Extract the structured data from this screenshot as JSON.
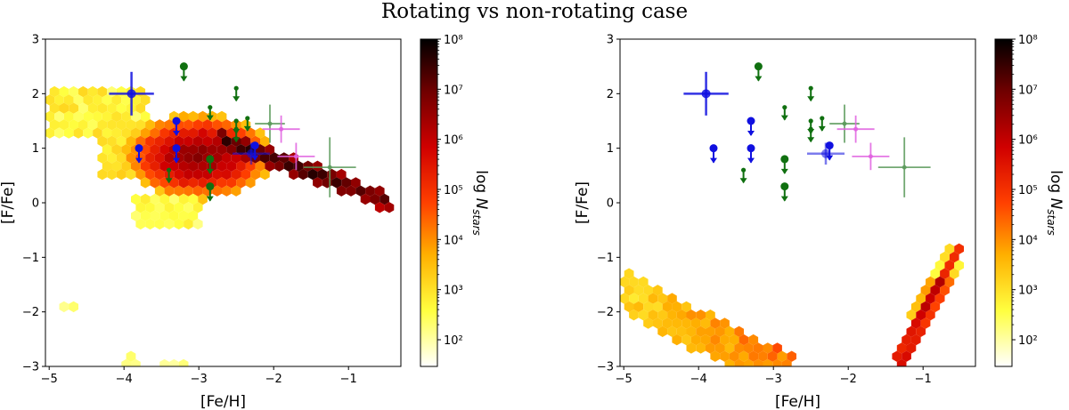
{
  "figure": {
    "title": "Rotating vs non-rotating case"
  },
  "chart_data": [
    {
      "type": "heatmap",
      "panel": "left",
      "xlabel": "[Fe/H]",
      "ylabel": "[F/Fe]",
      "colorbar_label": "log N_stars",
      "xlim": [
        -5.05,
        -0.3
      ],
      "ylim": [
        -3,
        3
      ],
      "xticks": [
        -5,
        -4,
        -3,
        -2,
        -1
      ],
      "yticks": [
        -3,
        -2,
        -1,
        0,
        1,
        2,
        3
      ],
      "colorbar_ticks": [
        "10²",
        "10³",
        "10⁴",
        "10⁵",
        "10⁶",
        "10⁷",
        "10⁸"
      ],
      "colorscale": [
        "#ffffff",
        "#ffff40",
        "#ffb000",
        "#ff4000",
        "#d00000",
        "#700000",
        "#000000"
      ],
      "density_regions": [
        {
          "name": "upper-left plateau",
          "x": [
            -5.0,
            -3.9
          ],
          "y": [
            1.4,
            2.0
          ],
          "level": 0.15
        },
        {
          "name": "main cloud",
          "x": [
            -4.0,
            -2.2
          ],
          "y": [
            0.0,
            1.6
          ],
          "level": 0.55
        },
        {
          "name": "dense core",
          "x": [
            -3.4,
            -2.6
          ],
          "y": [
            0.5,
            1.2
          ],
          "level": 0.75
        },
        {
          "name": "diagonal ridge",
          "x": [
            -2.6,
            -0.4
          ],
          "y_start": 1.1,
          "y_end": 0.0,
          "level": 0.9
        },
        {
          "name": "sparse tail",
          "x": [
            -4.9,
            -3.0
          ],
          "y": [
            -3.0,
            -1.9
          ],
          "level": 0.1
        }
      ],
      "points": [
        {
          "series": "blue",
          "x": -3.9,
          "y": 2.0,
          "xerr": 0.3,
          "yerr": 0.4,
          "kind": "detection"
        },
        {
          "series": "blue",
          "x": -3.8,
          "y": 1.0,
          "kind": "upper_limit"
        },
        {
          "series": "blue",
          "x": -3.3,
          "y": 1.5,
          "kind": "upper_limit"
        },
        {
          "series": "blue",
          "x": -3.3,
          "y": 1.0,
          "kind": "upper_limit"
        },
        {
          "series": "blue",
          "x": -2.25,
          "y": 1.05,
          "kind": "upper_limit"
        },
        {
          "series": "blue",
          "x": -2.3,
          "y": 0.9,
          "xerr": 0.25,
          "yerr": 0.2,
          "kind": "detection"
        },
        {
          "series": "green",
          "x": -3.2,
          "y": 2.5,
          "kind": "upper_limit"
        },
        {
          "series": "green",
          "x": -2.85,
          "y": 1.75,
          "kind": "upper_limit"
        },
        {
          "series": "green",
          "x": -2.5,
          "y": 2.1,
          "kind": "upper_limit"
        },
        {
          "series": "green",
          "x": -2.5,
          "y": 1.5,
          "kind": "upper_limit"
        },
        {
          "series": "green",
          "x": -2.5,
          "y": 1.35,
          "kind": "upper_limit"
        },
        {
          "series": "green",
          "x": -2.35,
          "y": 1.55,
          "kind": "upper_limit"
        },
        {
          "series": "green",
          "x": -3.4,
          "y": 0.6,
          "kind": "upper_limit"
        },
        {
          "series": "green",
          "x": -2.85,
          "y": 0.8,
          "kind": "upper_limit"
        },
        {
          "series": "green",
          "x": -2.85,
          "y": 0.3,
          "kind": "upper_limit"
        },
        {
          "series": "green_faint",
          "x": -2.05,
          "y": 1.45,
          "xerr": 0.2,
          "yerr": 0.35,
          "kind": "detection"
        },
        {
          "series": "green_faint",
          "x": -1.25,
          "y": 0.65,
          "xerr": 0.35,
          "yerr": 0.55,
          "kind": "detection"
        },
        {
          "series": "magenta",
          "x": -1.9,
          "y": 1.35,
          "xerr": 0.25,
          "yerr": 0.25,
          "kind": "detection"
        },
        {
          "series": "magenta",
          "x": -1.7,
          "y": 0.85,
          "xerr": 0.25,
          "yerr": 0.25,
          "kind": "detection"
        }
      ]
    },
    {
      "type": "heatmap",
      "panel": "right",
      "xlabel": "[Fe/H]",
      "ylabel": "[F/Fe]",
      "colorbar_label": "log N_stars",
      "xlim": [
        -5.05,
        -0.3
      ],
      "ylim": [
        -3,
        3
      ],
      "xticks": [
        -5,
        -4,
        -3,
        -2,
        -1
      ],
      "yticks": [
        -3,
        -2,
        -1,
        0,
        1,
        2,
        3
      ],
      "colorbar_ticks": [
        "10²",
        "10³",
        "10⁴",
        "10⁵",
        "10⁶",
        "10⁷",
        "10⁸"
      ],
      "colorscale": [
        "#ffffff",
        "#ffff40",
        "#ffb000",
        "#ff4000",
        "#d00000",
        "#700000",
        "#000000"
      ],
      "density_regions": [
        {
          "name": "lower-left diagonal",
          "x": [
            -5.0,
            -2.8
          ],
          "y_start": -1.5,
          "y_end": -3.0,
          "level": 0.3
        },
        {
          "name": "steep diagonal band",
          "x": [
            -1.35,
            -0.55
          ],
          "y_start": -3.0,
          "y_end": -0.9,
          "level": 0.7
        }
      ],
      "points": [
        {
          "series": "blue",
          "x": -3.9,
          "y": 2.0,
          "xerr": 0.3,
          "yerr": 0.4,
          "kind": "detection"
        },
        {
          "series": "blue",
          "x": -3.8,
          "y": 1.0,
          "kind": "upper_limit"
        },
        {
          "series": "blue",
          "x": -3.3,
          "y": 1.5,
          "kind": "upper_limit"
        },
        {
          "series": "blue",
          "x": -3.3,
          "y": 1.0,
          "kind": "upper_limit"
        },
        {
          "series": "blue",
          "x": -2.25,
          "y": 1.05,
          "kind": "upper_limit"
        },
        {
          "series": "blue",
          "x": -2.3,
          "y": 0.9,
          "xerr": 0.25,
          "yerr": 0.2,
          "kind": "detection"
        },
        {
          "series": "green",
          "x": -3.2,
          "y": 2.5,
          "kind": "upper_limit"
        },
        {
          "series": "green",
          "x": -2.85,
          "y": 1.75,
          "kind": "upper_limit"
        },
        {
          "series": "green",
          "x": -2.5,
          "y": 2.1,
          "kind": "upper_limit"
        },
        {
          "series": "green",
          "x": -2.5,
          "y": 1.5,
          "kind": "upper_limit"
        },
        {
          "series": "green",
          "x": -2.5,
          "y": 1.35,
          "kind": "upper_limit"
        },
        {
          "series": "green",
          "x": -2.35,
          "y": 1.55,
          "kind": "upper_limit"
        },
        {
          "series": "green",
          "x": -3.4,
          "y": 0.6,
          "kind": "upper_limit"
        },
        {
          "series": "green",
          "x": -2.85,
          "y": 0.8,
          "kind": "upper_limit"
        },
        {
          "series": "green",
          "x": -2.85,
          "y": 0.3,
          "kind": "upper_limit"
        },
        {
          "series": "green_faint",
          "x": -2.05,
          "y": 1.45,
          "xerr": 0.2,
          "yerr": 0.35,
          "kind": "detection"
        },
        {
          "series": "green_faint",
          "x": -1.25,
          "y": 0.65,
          "xerr": 0.35,
          "yerr": 0.55,
          "kind": "detection"
        },
        {
          "series": "magenta",
          "x": -1.9,
          "y": 1.35,
          "xerr": 0.25,
          "yerr": 0.25,
          "kind": "detection"
        },
        {
          "series": "magenta",
          "x": -1.7,
          "y": 0.85,
          "xerr": 0.25,
          "yerr": 0.25,
          "kind": "detection"
        }
      ]
    }
  ],
  "series_colors": {
    "blue": "#1010e0",
    "green": "#107010",
    "green_faint": "#5a9a5a",
    "magenta": "#e060e0"
  }
}
